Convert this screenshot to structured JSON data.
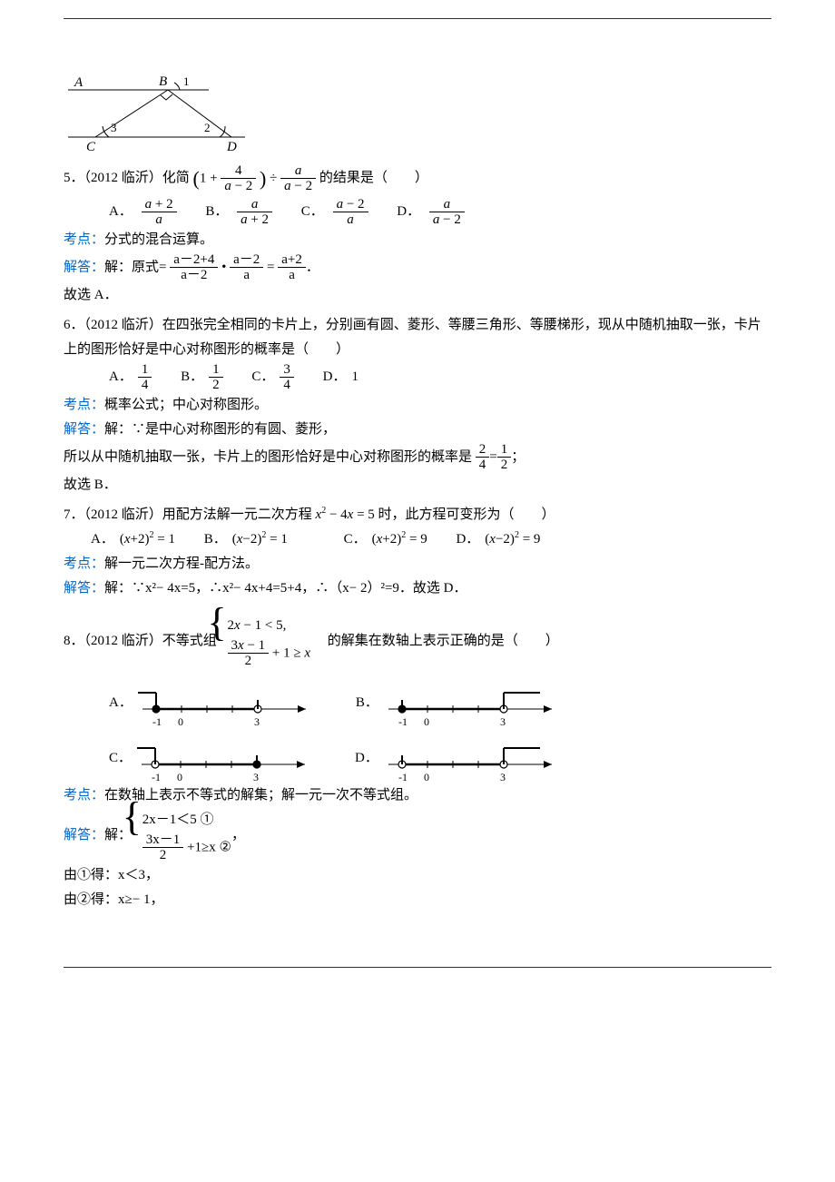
{
  "rule": {
    "color": "#333333"
  },
  "q4_figure": {
    "labels": {
      "A": "A",
      "B": "B",
      "C": "C",
      "D": "D",
      "ang1": "1",
      "ang2": "2",
      "ang3": "3"
    },
    "colors": {
      "line": "#000000",
      "fill": "#787878"
    }
  },
  "q5": {
    "prefix": "5．（2012 临沂）化简",
    "after_formula": "的结果是（　　）",
    "lp_num": "4",
    "lp_den_l": "a",
    "lp_den_r": "2",
    "div_num": "a",
    "div_den_l": "a",
    "div_den_r": "2",
    "A_num_l": "a",
    "A_num_r": "2",
    "A_den": "a",
    "B_num": "a",
    "B_den_l": "a",
    "B_den_r": "2",
    "C_num_l": "a",
    "C_num_r": "2",
    "C_den": "a",
    "D_num": "a",
    "D_den_l": "a",
    "D_den_r": "2",
    "kd_label": "考点：",
    "kd_text": "分式的混合运算。",
    "jd_label": "解答：",
    "jd_prefix": "解：原式=",
    "step1_num": "a－2+4",
    "step1_den": "a－2",
    "step2_num": "a－2",
    "step2_den": "a",
    "step3_num": "a+2",
    "step3_den": "a",
    "concl": "故选 A．"
  },
  "q6": {
    "prefix": "6．（2012 临沂）在四张完全相同的卡片上，分别画有圆、菱形、等腰三角形、等腰梯形，现从中随机抽取一张，卡片上的图形恰好是中心对称图形的概率是（　　）",
    "A_num": "1",
    "A_den": "4",
    "B_num": "1",
    "B_den": "2",
    "C_num": "3",
    "C_den": "4",
    "D": "1",
    "kd_label": "考点：",
    "kd_text": "概率公式；中心对称图形。",
    "jd_label": "解答：",
    "jd_text": "解：∵是中心对称图形的有圆、菱形，",
    "line3_pre": "所以从中随机抽取一张，卡片上的图形恰好是中心对称图形的概率是",
    "r1_num": "2",
    "r1_den": "4",
    "r2_num": "1",
    "r2_den": "2",
    "line3_post": "；",
    "concl": "故选 B．"
  },
  "q7": {
    "prefix": "7．（2012 临沂）用配方法解一元二次方程",
    "eq_lhs": "x",
    "sq": "2",
    "mid": " − 4",
    "eq_x": "x",
    "eq_rhs": " = 5",
    "after_formula": "时，此方程可变形为（　　）",
    "A": "(x+2)",
    "B": "(x−2)",
    "AB_rhs": " = 1",
    "C": "(x+2)",
    "D": "(x−2)",
    "CD_rhs": " = 9",
    "kd_label": "考点：",
    "kd_text": "解一元二次方程-配方法。",
    "jd_label": "解答：",
    "jd_text": "解：∵x²− 4x=5，∴x²− 4x+4=5+4，∴（x− 2）²=9．故选 D．"
  },
  "q8": {
    "prefix": "8．（2012 临沂）不等式组",
    "sys_line1": "2x − 1 < 5,",
    "sys_line2_num": "3x − 1",
    "sys_line2_den": "2",
    "sys_line2_rest": " + 1 ≥ x",
    "after_formula": "　的解集在数轴上表示正确的是（　　）",
    "kd_label": "考点：",
    "kd_text": "在数轴上表示不等式的解集；解一元一次不等式组。",
    "jd_label": "解答：",
    "jd_prefix": "解：",
    "b_line1": "2x－1＜5  ①",
    "b_line2_num": "3x－1",
    "b_line2_den": "2",
    "b_line2_rest": "+1≥x  ②",
    "brace_post": "，",
    "l1": "由①得：x＜3，",
    "l2": "由②得：x≥− 1，",
    "numberlines": {
      "ticks": [
        -1,
        0,
        1,
        2,
        3
      ],
      "labels": {
        "neg1": "-1",
        "zero": "0",
        "three": "3"
      },
      "A": {
        "left_fill": true,
        "right_fill": false,
        "up_left": true,
        "up_right": false
      },
      "B": {
        "left_fill": true,
        "right_fill": false,
        "up_left": false,
        "up_right": true
      },
      "C": {
        "left_fill": false,
        "right_fill": true,
        "up_left": true,
        "up_right": false
      },
      "D": {
        "left_fill": false,
        "right_fill": false,
        "up_left": false,
        "up_right": true
      },
      "line_color": "#000000"
    }
  }
}
